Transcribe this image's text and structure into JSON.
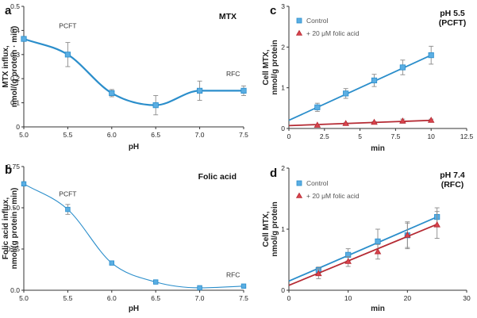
{
  "colors": {
    "blue": "#2b8ecb",
    "blue_marker": "#5aaee3",
    "red": "#b52a33",
    "red_marker": "#d9434c",
    "axis": "#333333",
    "error_bar": "#8a8a8a"
  },
  "chart_data": [
    {
      "id": "a",
      "type": "line",
      "panel_letter": "a",
      "title": "MTX",
      "xlabel": "pH",
      "ylabel": "MTX influx,\nnmol/(g protein · min)",
      "xlim": [
        5.0,
        7.5
      ],
      "ylim": [
        0,
        0.5
      ],
      "xticks": [
        5.0,
        5.5,
        6.0,
        6.5,
        7.0,
        7.5
      ],
      "xtick_labels": [
        "5.0",
        "5.5",
        "6.0",
        "6.5",
        "7.0",
        "7.5"
      ],
      "yticks": [
        0,
        0.1,
        0.2,
        0.3,
        0.4,
        0.5
      ],
      "ytick_labels": [
        "0",
        "0.1",
        "0.2",
        "0.3",
        "0.4",
        "0.5"
      ],
      "series": [
        {
          "name": "MTX",
          "color": "blue",
          "x": [
            5.0,
            5.5,
            6.0,
            6.5,
            7.0,
            7.5
          ],
          "y": [
            0.365,
            0.3,
            0.14,
            0.09,
            0.15,
            0.15
          ],
          "err": [
            0.01,
            0.05,
            0.015,
            0.04,
            0.04,
            0.02
          ],
          "marker": "square",
          "curve": "smooth"
        }
      ],
      "annotations": [
        {
          "text": "PCFT",
          "x": 5.5,
          "y": 0.41
        },
        {
          "text": "RFC",
          "x": 7.38,
          "y": 0.21
        }
      ]
    },
    {
      "id": "b",
      "type": "line",
      "panel_letter": "b",
      "title": "Folic acid",
      "xlabel": "pH",
      "ylabel": "Folic acid influx,\nnmol/(g protein · min)",
      "xlim": [
        5.0,
        7.5
      ],
      "ylim": [
        0,
        0.75
      ],
      "xticks": [
        5.0,
        5.5,
        6.0,
        6.5,
        7.0,
        7.5
      ],
      "xtick_labels": [
        "5.0",
        "5.5",
        "6.0",
        "6.5",
        "7.0",
        "7.5"
      ],
      "yticks": [
        0,
        0.25,
        0.5,
        0.75
      ],
      "ytick_labels": [
        "0.0",
        "0.25",
        "0.50",
        "0.75"
      ],
      "series": [
        {
          "name": "Folic acid",
          "color": "blue",
          "x": [
            5.0,
            5.5,
            6.0,
            6.5,
            7.0,
            7.5
          ],
          "y": [
            0.645,
            0.49,
            0.165,
            0.05,
            0.015,
            0.025
          ],
          "err": [
            0.01,
            0.03,
            0.01,
            0.005,
            0.005,
            0.01
          ],
          "marker": "square",
          "curve": "smooth",
          "thin": true
        }
      ],
      "annotations": [
        {
          "text": "PCFT",
          "x": 5.5,
          "y": 0.57
        },
        {
          "text": "RFC",
          "x": 7.38,
          "y": 0.08
        }
      ]
    },
    {
      "id": "c",
      "type": "line",
      "panel_letter": "c",
      "title": "pH 5.5\n(PCFT)",
      "xlabel": "min",
      "ylabel": "Cell MTX,\nnmol/g protein",
      "xlim": [
        0,
        12.5
      ],
      "ylim": [
        0,
        3
      ],
      "xticks": [
        0,
        2.5,
        5,
        7.5,
        10,
        12.5
      ],
      "xtick_labels": [
        "0",
        "2.5",
        "5",
        "7.5",
        "10",
        "12.5"
      ],
      "yticks": [
        0,
        1,
        2,
        3
      ],
      "ytick_labels": [
        "0",
        "1",
        "2",
        "3"
      ],
      "legend": [
        {
          "label": "Control",
          "color": "blue",
          "marker": "square"
        },
        {
          "label": "+ 20 μM folic acid",
          "color": "red",
          "marker": "triangle"
        }
      ],
      "series": [
        {
          "name": "Control",
          "color": "blue",
          "x": [
            2,
            4,
            6,
            8,
            10
          ],
          "y": [
            0.52,
            0.86,
            1.18,
            1.5,
            1.8
          ],
          "err": [
            0.1,
            0.12,
            0.15,
            0.18,
            0.22
          ],
          "marker": "square",
          "fit": {
            "x0": 0,
            "y0": 0.2,
            "x1": 10,
            "y1": 1.8
          }
        },
        {
          "name": "+ 20 μM folic acid",
          "color": "red",
          "x": [
            2,
            4,
            6,
            8,
            10
          ],
          "y": [
            0.08,
            0.12,
            0.15,
            0.18,
            0.2
          ],
          "err": [
            0.02,
            0.02,
            0.02,
            0.05,
            0.03
          ],
          "marker": "triangle",
          "fit": {
            "x0": 0,
            "y0": 0.07,
            "x1": 10,
            "y1": 0.2
          }
        }
      ]
    },
    {
      "id": "d",
      "type": "line",
      "panel_letter": "d",
      "title": "pH 7.4\n(RFC)",
      "xlabel": "min",
      "ylabel": "Cell MTX,\nnmol/g protein",
      "xlim": [
        0,
        30
      ],
      "ylim": [
        0,
        2
      ],
      "xticks": [
        0,
        10,
        20,
        30
      ],
      "xtick_labels": [
        "0",
        "10",
        "20",
        "30"
      ],
      "yticks": [
        0,
        1,
        2
      ],
      "ytick_labels": [
        "0",
        "1",
        "2"
      ],
      "legend": [
        {
          "label": "Control",
          "color": "blue",
          "marker": "square"
        },
        {
          "label": "+ 20 μM folic acid",
          "color": "red",
          "marker": "triangle"
        }
      ],
      "series": [
        {
          "name": "Control",
          "color": "blue",
          "x": [
            5,
            10,
            15,
            20,
            25
          ],
          "y": [
            0.33,
            0.58,
            0.8,
            0.9,
            1.2
          ],
          "err": [
            0.05,
            0.1,
            0.2,
            0.2,
            0.15
          ],
          "marker": "square",
          "fit": {
            "x0": 0,
            "y0": 0.15,
            "x1": 25,
            "y1": 1.2
          }
        },
        {
          "name": "+ 20 μM folic acid",
          "color": "red",
          "x": [
            5,
            10,
            15,
            20,
            25
          ],
          "y": [
            0.27,
            0.47,
            0.63,
            0.9,
            1.07
          ],
          "err": [
            0.08,
            0.08,
            0.12,
            0.22,
            0.22
          ],
          "marker": "triangle",
          "fit": {
            "x0": 0,
            "y0": 0.08,
            "x1": 25,
            "y1": 1.08
          }
        }
      ]
    }
  ]
}
